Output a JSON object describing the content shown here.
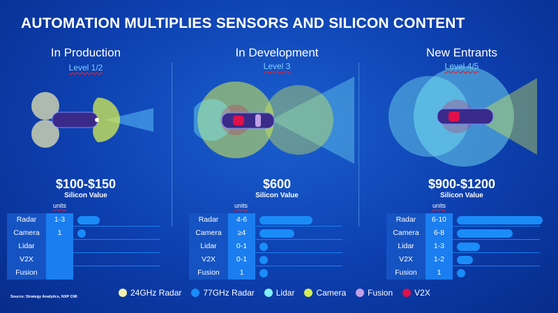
{
  "title": "AUTOMATION MULTIPLIES SENSORS AND SILICON CONTENT",
  "columns": [
    {
      "heading": "In Production",
      "level": "Level 1/2",
      "price": "$100-$150",
      "silicon_label": "Silicon Value",
      "units_label": "units",
      "rows": [
        {
          "label": "Radar",
          "units": "1-3",
          "bar": 0.26
        },
        {
          "label": "Camera",
          "units": "1",
          "bar": 0.1
        },
        {
          "label": "Lidar",
          "units": "",
          "bar": 0
        },
        {
          "label": "V2X",
          "units": "",
          "bar": 0
        },
        {
          "label": "Fusion",
          "units": "",
          "bar": 0
        }
      ]
    },
    {
      "heading": "In Development",
      "level": "Level 3",
      "price": "$600",
      "silicon_label": "Silicon Value",
      "units_label": "units",
      "rows": [
        {
          "label": "Radar",
          "units": "4-6",
          "bar": 0.62
        },
        {
          "label": "Camera",
          "units": "≥4",
          "bar": 0.41
        },
        {
          "label": "Lidar",
          "units": "0-1",
          "bar": 0.1
        },
        {
          "label": "V2X",
          "units": "0-1",
          "bar": 0.1
        },
        {
          "label": "Fusion",
          "units": "1",
          "bar": 0.1
        }
      ]
    },
    {
      "heading": "New Entrants",
      "level": "Level 4/5",
      "price": "$900-$1200",
      "silicon_label": "Silicon Value",
      "units_label": "units",
      "rows": [
        {
          "label": "Radar",
          "units": "6-10",
          "bar": 1.0
        },
        {
          "label": "Camera",
          "units": "6-8",
          "bar": 0.65
        },
        {
          "label": "Lidar",
          "units": "1-3",
          "bar": 0.27
        },
        {
          "label": "V2X",
          "units": "1-2",
          "bar": 0.19
        },
        {
          "label": "Fusion",
          "units": "1",
          "bar": 0.1
        }
      ]
    }
  ],
  "legend": [
    {
      "label": "24GHz Radar",
      "color": "#f4f0b0"
    },
    {
      "label": "77GHz Radar",
      "color": "#1a8cf8"
    },
    {
      "label": "Lidar",
      "color": "#7ff0f8"
    },
    {
      "label": "Camera",
      "color": "#d4ee50"
    },
    {
      "label": "Fusion",
      "color": "#c0a0e8"
    },
    {
      "label": "V2X",
      "color": "#e0104a"
    }
  ],
  "source": "Source: Strategy Analytics, NXP CMI"
}
